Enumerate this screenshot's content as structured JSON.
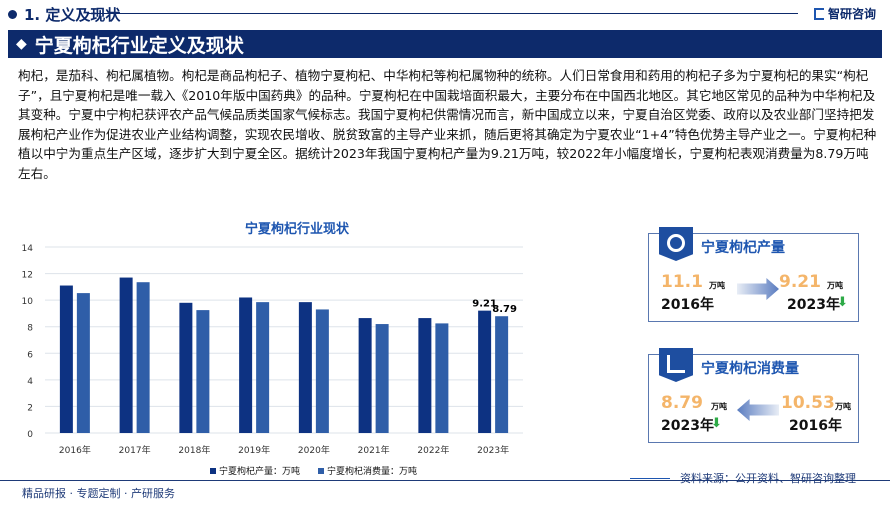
{
  "section": {
    "title": "1. 定义及现状"
  },
  "brand": "智研咨询",
  "banner": "宁夏枸杞行业定义及现状",
  "paragraph": "枸杞，是茄科、枸杞属植物。枸杞是商品枸杞子、植物宁夏枸杞、中华枸杞等枸杞属物种的统称。人们日常食用和药用的枸杞子多为宁夏枸杞的果实“枸杞子”，且宁夏枸杞是唯一载入《2010年版中国药典》的品种。宁夏枸杞在中国栽培面积最大，主要分布在中国西北地区。其它地区常见的品种为中华枸杞及其变种。宁夏中宁枸杞获评农产品气候品质类国家气候标志。我国宁夏枸杞供需情况而言，新中国成立以来，宁夏自治区党委、政府以及农业部门坚持把发展枸杞产业作为促进农业产业结构调整，实现农民增收、脱贫致富的主导产业来抓，随后更将其确定为宁夏农业“1+4”特色优势主导产业之一。宁夏枸杞种植以中宁为重点生产区域，逐步扩大到宁夏全区。据统计2023年我国宁夏枸杞产量为9.21万吨，较2022年小幅度增长，宁夏枸杞表观消费量为8.79万吨左右。",
  "chart_data": {
    "type": "bar",
    "title": "宁夏枸杞行业现状",
    "categories": [
      "2016年",
      "2017年",
      "2018年",
      "2019年",
      "2020年",
      "2021年",
      "2022年",
      "2023年"
    ],
    "series": [
      {
        "name": "宁夏枸杞产量：万吨",
        "color": "#0d3282",
        "values": [
          11.1,
          11.7,
          9.8,
          10.2,
          9.85,
          8.65,
          8.65,
          9.21
        ]
      },
      {
        "name": "宁夏枸杞消费量：万吨",
        "color": "#2f5ea8",
        "values": [
          10.53,
          11.35,
          9.25,
          9.85,
          9.3,
          8.2,
          8.25,
          8.79
        ]
      }
    ],
    "data_labels": {
      "2023年": [
        "9.21",
        "8.79"
      ]
    },
    "yticks": [
      "0",
      "2",
      "4",
      "6",
      "8",
      "10",
      "12",
      "14"
    ],
    "ylim": [
      0,
      14
    ],
    "grid": true,
    "legend": "bottom"
  },
  "cards": {
    "production": {
      "title": "宁夏枸杞产量",
      "from_value": "11.1",
      "from_unit": "万吨",
      "from_year": "2016年",
      "to_value": "9.21",
      "to_unit": "万吨",
      "to_year": "2023年"
    },
    "consumption": {
      "title": "宁夏枸杞消费量",
      "to_value": "8.79",
      "to_unit": "万吨",
      "to_year": "2023年",
      "from_value": "10.53",
      "from_unit": "万吨",
      "from_year": "2016年"
    }
  },
  "down_icon": "⬇",
  "source": "资料来源：公开资料、智研咨询整理",
  "footer": "精品研报 · 专题定制 · 产研服务"
}
